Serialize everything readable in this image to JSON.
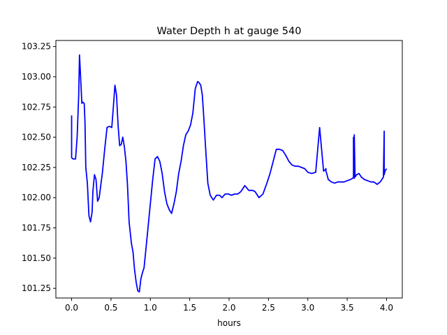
{
  "chart_data": {
    "type": "line",
    "title": "Water Depth h at gauge 540",
    "xlabel": "hours",
    "ylabel": "",
    "xlim": [
      -0.2,
      4.2
    ],
    "ylim": [
      101.17,
      103.3
    ],
    "xticks": [
      "0.0",
      "0.5",
      "1.0",
      "1.5",
      "2.0",
      "2.5",
      "3.0",
      "3.5",
      "4.0"
    ],
    "yticks": [
      "101.25",
      "101.50",
      "101.75",
      "102.00",
      "102.25",
      "102.50",
      "102.75",
      "103.00",
      "103.25"
    ],
    "grid": false,
    "series": [
      {
        "color": "#0000ff",
        "x": [
          0.0,
          0.0,
          0.0,
          0.02,
          0.05,
          0.07,
          0.09,
          0.1,
          0.11,
          0.13,
          0.14,
          0.16,
          0.17,
          0.18,
          0.2,
          0.22,
          0.24,
          0.26,
          0.27,
          0.29,
          0.31,
          0.33,
          0.35,
          0.37,
          0.39,
          0.42,
          0.45,
          0.48,
          0.51,
          0.53,
          0.55,
          0.57,
          0.59,
          0.61,
          0.63,
          0.65,
          0.67,
          0.69,
          0.71,
          0.73,
          0.76,
          0.78,
          0.8,
          0.82,
          0.84,
          0.86,
          0.88,
          0.9,
          0.92,
          0.94,
          0.97,
          1.0,
          1.03,
          1.06,
          1.09,
          1.12,
          1.15,
          1.18,
          1.21,
          1.24,
          1.27,
          1.3,
          1.33,
          1.36,
          1.39,
          1.42,
          1.45,
          1.48,
          1.51,
          1.54,
          1.57,
          1.6,
          1.62,
          1.64,
          1.66,
          1.68,
          1.7,
          1.73,
          1.76,
          1.8,
          1.84,
          1.88,
          1.91,
          1.95,
          1.99,
          2.03,
          2.07,
          2.11,
          2.15,
          2.2,
          2.25,
          2.3,
          2.33,
          2.38,
          2.43,
          2.48,
          2.52,
          2.56,
          2.6,
          2.64,
          2.68,
          2.72,
          2.76,
          2.8,
          2.84,
          2.88,
          2.92,
          2.96,
          3.0,
          3.05,
          3.1,
          3.15,
          3.2,
          3.22,
          3.23,
          3.23,
          3.24,
          3.26,
          3.3,
          3.34,
          3.38,
          3.42,
          3.46,
          3.5,
          3.54,
          3.57,
          3.58,
          3.58,
          3.59,
          3.59,
          3.6,
          3.62,
          3.65,
          3.68,
          3.72,
          3.76,
          3.8,
          3.84,
          3.88,
          3.92,
          3.95,
          3.96,
          3.97,
          3.97,
          3.98,
          3.99,
          4.0
        ],
        "y": [
          102.68,
          102.33,
          102.33,
          102.32,
          102.32,
          102.5,
          102.85,
          103.18,
          103.05,
          102.78,
          102.79,
          102.78,
          102.62,
          102.25,
          102.12,
          101.85,
          101.8,
          101.88,
          102.05,
          102.19,
          102.15,
          101.97,
          102.0,
          102.1,
          102.2,
          102.4,
          102.58,
          102.59,
          102.58,
          102.75,
          102.93,
          102.85,
          102.6,
          102.43,
          102.44,
          102.5,
          102.42,
          102.3,
          102.1,
          101.8,
          101.62,
          101.55,
          101.4,
          101.3,
          101.23,
          101.22,
          101.33,
          101.38,
          101.42,
          101.55,
          101.75,
          101.95,
          102.15,
          102.32,
          102.34,
          102.3,
          102.2,
          102.05,
          101.95,
          101.9,
          101.87,
          101.95,
          102.05,
          102.2,
          102.3,
          102.43,
          102.52,
          102.55,
          102.6,
          102.7,
          102.9,
          102.96,
          102.95,
          102.93,
          102.85,
          102.65,
          102.43,
          102.12,
          102.02,
          101.98,
          102.02,
          102.02,
          102.0,
          102.03,
          102.03,
          102.02,
          102.03,
          102.03,
          102.05,
          102.1,
          102.06,
          102.06,
          102.05,
          102.0,
          102.03,
          102.12,
          102.2,
          102.3,
          102.4,
          102.4,
          102.39,
          102.35,
          102.3,
          102.27,
          102.26,
          102.26,
          102.25,
          102.24,
          102.21,
          102.2,
          102.21,
          102.58,
          102.22,
          102.23,
          102.24,
          102.22,
          102.2,
          102.15,
          102.13,
          102.12,
          102.13,
          102.13,
          102.13,
          102.14,
          102.15,
          102.16,
          102.17,
          102.5,
          102.16,
          102.52,
          102.17,
          102.19,
          102.2,
          102.17,
          102.15,
          102.14,
          102.13,
          102.13,
          102.11,
          102.13,
          102.16,
          102.17,
          102.55,
          102.19,
          102.22,
          102.23,
          102.24
        ]
      }
    ]
  }
}
